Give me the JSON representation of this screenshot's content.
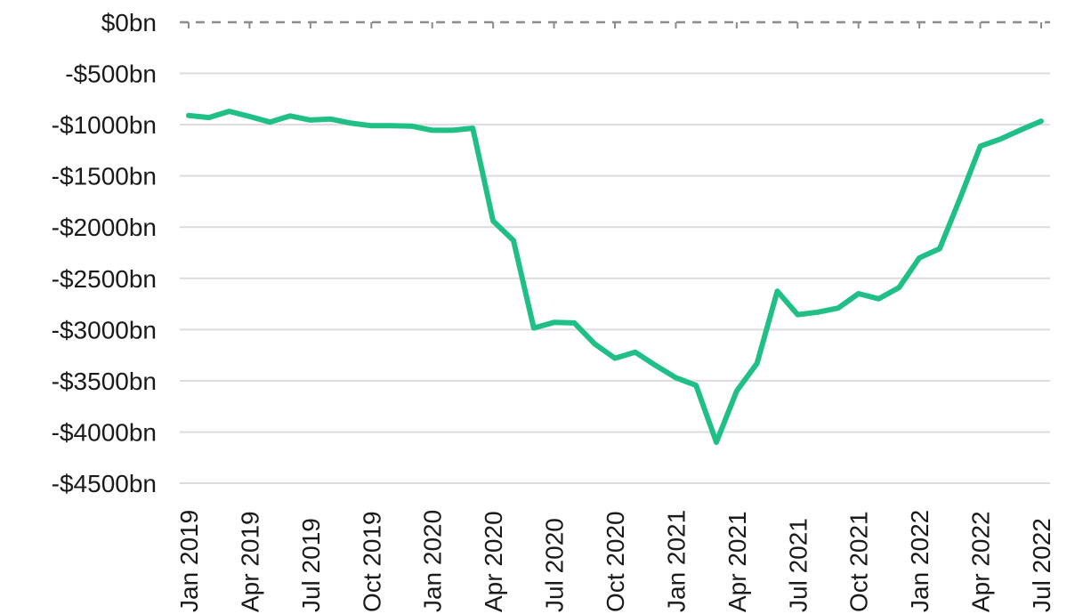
{
  "chart_data": {
    "type": "line",
    "title": "",
    "xlabel": "",
    "ylabel": "",
    "ylim": [
      -4500,
      0
    ],
    "grid": true,
    "yticks": [
      {
        "value": 0,
        "label": "$0bn"
      },
      {
        "value": -500,
        "label": "-$500bn"
      },
      {
        "value": -1000,
        "label": "-$1000bn"
      },
      {
        "value": -1500,
        "label": "-$1500bn"
      },
      {
        "value": -2000,
        "label": "-$2000bn"
      },
      {
        "value": -2500,
        "label": "-$2500bn"
      },
      {
        "value": -3000,
        "label": "-$3000bn"
      },
      {
        "value": -3500,
        "label": "-$3500bn"
      },
      {
        "value": -4000,
        "label": "-$4000bn"
      },
      {
        "value": -4500,
        "label": "-$4500bn"
      }
    ],
    "x": [
      "2019-01",
      "2019-02",
      "2019-03",
      "2019-04",
      "2019-05",
      "2019-06",
      "2019-07",
      "2019-08",
      "2019-09",
      "2019-10",
      "2019-11",
      "2019-12",
      "2020-01",
      "2020-02",
      "2020-03",
      "2020-04",
      "2020-05",
      "2020-06",
      "2020-07",
      "2020-08",
      "2020-09",
      "2020-10",
      "2020-11",
      "2020-12",
      "2021-01",
      "2021-02",
      "2021-03",
      "2021-04",
      "2021-05",
      "2021-06",
      "2021-07",
      "2021-08",
      "2021-09",
      "2021-10",
      "2021-11",
      "2021-12",
      "2022-01",
      "2022-02",
      "2022-03",
      "2022-04",
      "2022-05",
      "2022-06",
      "2022-07"
    ],
    "xtick_labels": [
      {
        "x": "2019-01",
        "label": "Jan 2019"
      },
      {
        "x": "2019-04",
        "label": "Apr 2019"
      },
      {
        "x": "2019-07",
        "label": "Jul 2019"
      },
      {
        "x": "2019-10",
        "label": "Oct 2019"
      },
      {
        "x": "2020-01",
        "label": "Jan 2020"
      },
      {
        "x": "2020-04",
        "label": "Apr 2020"
      },
      {
        "x": "2020-07",
        "label": "Jul 2020"
      },
      {
        "x": "2020-10",
        "label": "Oct 2020"
      },
      {
        "x": "2021-01",
        "label": "Jan 2021"
      },
      {
        "x": "2021-04",
        "label": "Apr 2021"
      },
      {
        "x": "2021-07",
        "label": "Jul 2021"
      },
      {
        "x": "2021-10",
        "label": "Oct 2021"
      },
      {
        "x": "2022-01",
        "label": "Jan 2022"
      },
      {
        "x": "2022-04",
        "label": "Apr 2022"
      },
      {
        "x": "2022-07",
        "label": "Jul 2022"
      }
    ],
    "series": [
      {
        "color": "#1fbf86",
        "values": [
          -910,
          -930,
          -870,
          -920,
          -975,
          -915,
          -955,
          -945,
          -985,
          -1010,
          -1010,
          -1015,
          -1055,
          -1055,
          -1035,
          -1940,
          -2130,
          -2985,
          -2930,
          -2935,
          -3140,
          -3280,
          -3220,
          -3350,
          -3470,
          -3545,
          -4100,
          -3600,
          -3330,
          -2625,
          -2855,
          -2830,
          -2790,
          -2650,
          -2700,
          -2590,
          -2300,
          -2210,
          -1720,
          -1210,
          -1140,
          -1050,
          -965
        ]
      }
    ]
  }
}
